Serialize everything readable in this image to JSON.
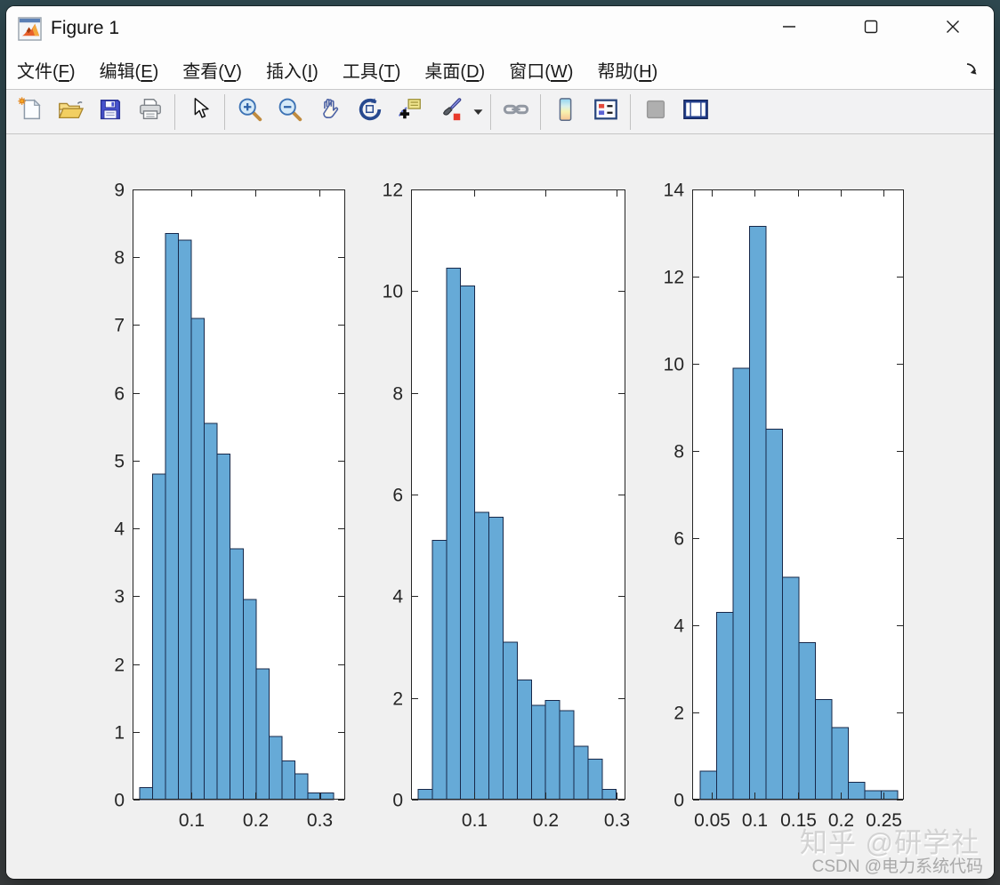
{
  "window": {
    "title": "Figure 1",
    "app_icon": "matlab-logo-icon",
    "controls": [
      {
        "name": "minimize-button",
        "icon": "minimize-icon"
      },
      {
        "name": "maximize-button",
        "icon": "maximize-icon"
      },
      {
        "name": "close-button",
        "icon": "close-icon"
      }
    ]
  },
  "menubar": {
    "items": [
      {
        "label": "文件(F)",
        "mnemonic": "F"
      },
      {
        "label": "编辑(E)",
        "mnemonic": "E"
      },
      {
        "label": "查看(V)",
        "mnemonic": "V"
      },
      {
        "label": "插入(I)",
        "mnemonic": "I"
      },
      {
        "label": "工具(T)",
        "mnemonic": "T"
      },
      {
        "label": "桌面(D)",
        "mnemonic": "D"
      },
      {
        "label": "窗口(W)",
        "mnemonic": "W"
      },
      {
        "label": "帮助(H)",
        "mnemonic": "H"
      }
    ],
    "dock_icon": "dock-figure-arrow-icon"
  },
  "toolbar": {
    "buttons": [
      {
        "name": "new-figure-button",
        "icon": "new-figure-icon"
      },
      {
        "name": "open-file-button",
        "icon": "open-folder-icon"
      },
      {
        "name": "save-figure-button",
        "icon": "save-icon"
      },
      {
        "name": "print-figure-button",
        "icon": "print-icon"
      },
      {
        "type": "separator"
      },
      {
        "name": "edit-plot-button",
        "icon": "pointer-arrow-icon"
      },
      {
        "type": "separator"
      },
      {
        "name": "zoom-in-button",
        "icon": "zoom-in-icon"
      },
      {
        "name": "zoom-out-button",
        "icon": "zoom-out-icon"
      },
      {
        "name": "pan-button",
        "icon": "pan-hand-icon"
      },
      {
        "name": "rotate-3d-button",
        "icon": "rotate-3d-icon"
      },
      {
        "name": "data-cursor-button",
        "icon": "data-cursor-icon"
      },
      {
        "name": "brush-data-button",
        "icon": "brush-icon"
      },
      {
        "name": "brush-dropdown-button",
        "icon": "dropdown-caret-icon"
      },
      {
        "type": "separator"
      },
      {
        "name": "link-plot-button",
        "icon": "link-icon"
      },
      {
        "type": "separator"
      },
      {
        "name": "insert-colorbar-button",
        "icon": "colorbar-icon"
      },
      {
        "name": "insert-legend-button",
        "icon": "legend-icon"
      },
      {
        "type": "separator"
      },
      {
        "name": "hide-plot-tools-button",
        "icon": "hide-plot-tools-icon",
        "disabled": true
      },
      {
        "name": "show-plot-tools-button",
        "icon": "show-plot-tools-icon"
      }
    ]
  },
  "chart_data": [
    {
      "type": "bar",
      "title": "",
      "xlabel": "",
      "ylabel": "",
      "bin_start": 0.019,
      "bin_width": 0.0202,
      "values": [
        0.18,
        4.8,
        8.35,
        8.25,
        7.1,
        5.55,
        5.1,
        3.7,
        2.95,
        1.93,
        0.93,
        0.57,
        0.38,
        0.1,
        0.1
      ],
      "xlim": [
        0.008,
        0.34
      ],
      "ylim": [
        0,
        9
      ],
      "xtick_values": [
        0.1,
        0.2,
        0.3
      ],
      "xtick_labels": [
        "0.1",
        "0.2",
        "0.3"
      ],
      "ytick_values": [
        0,
        1,
        2,
        3,
        4,
        5,
        6,
        7,
        8,
        9
      ],
      "grid": false,
      "legend": "none",
      "bar_color": "#66AAD7",
      "bar_edge": "#17284A"
    },
    {
      "type": "bar",
      "title": "",
      "xlabel": "",
      "ylabel": "",
      "bin_start": 0.021,
      "bin_width": 0.0199,
      "values": [
        0.2,
        5.1,
        10.45,
        10.1,
        5.65,
        5.55,
        3.1,
        2.35,
        1.85,
        1.95,
        1.75,
        1.05,
        0.8,
        0.2
      ],
      "xlim": [
        0.011,
        0.3125
      ],
      "ylim": [
        0,
        12
      ],
      "xtick_values": [
        0.1,
        0.2,
        0.3
      ],
      "xtick_labels": [
        "0.1",
        "0.2",
        "0.3"
      ],
      "ytick_values": [
        0,
        2,
        4,
        6,
        8,
        10,
        12
      ],
      "grid": false,
      "legend": "none",
      "bar_color": "#66AAD7",
      "bar_edge": "#17284A"
    },
    {
      "type": "bar",
      "title": "",
      "xlabel": "",
      "ylabel": "",
      "bin_start": 0.0365,
      "bin_width": 0.0192,
      "values": [
        0.65,
        4.3,
        9.9,
        13.15,
        8.5,
        5.1,
        3.6,
        2.3,
        1.65,
        0.4,
        0.2,
        0.2
      ],
      "xlim": [
        0.027,
        0.274
      ],
      "ylim": [
        0,
        14
      ],
      "xtick_values": [
        0.05,
        0.1,
        0.15,
        0.2,
        0.25
      ],
      "xtick_labels": [
        "0.05",
        "0.1",
        "0.15",
        "0.2",
        "0.25"
      ],
      "ytick_values": [
        0,
        2,
        4,
        6,
        8,
        10,
        12,
        14
      ],
      "grid": false,
      "legend": "none",
      "bar_color": "#66AAD7",
      "bar_edge": "#17284A"
    }
  ],
  "watermark": {
    "line1": "知乎 @研学社",
    "line2": "CSDN @电力系统代码"
  },
  "colors": {
    "axis": "#252525",
    "figure_bg": "#F0F0F0",
    "plot_bg": "#FFFFFF",
    "titlebar_bg": "#FDFDFD",
    "toolbar_bg": "#F2F2F3",
    "bar_fill": "#66AAD7",
    "bar_edge": "#17284A"
  }
}
